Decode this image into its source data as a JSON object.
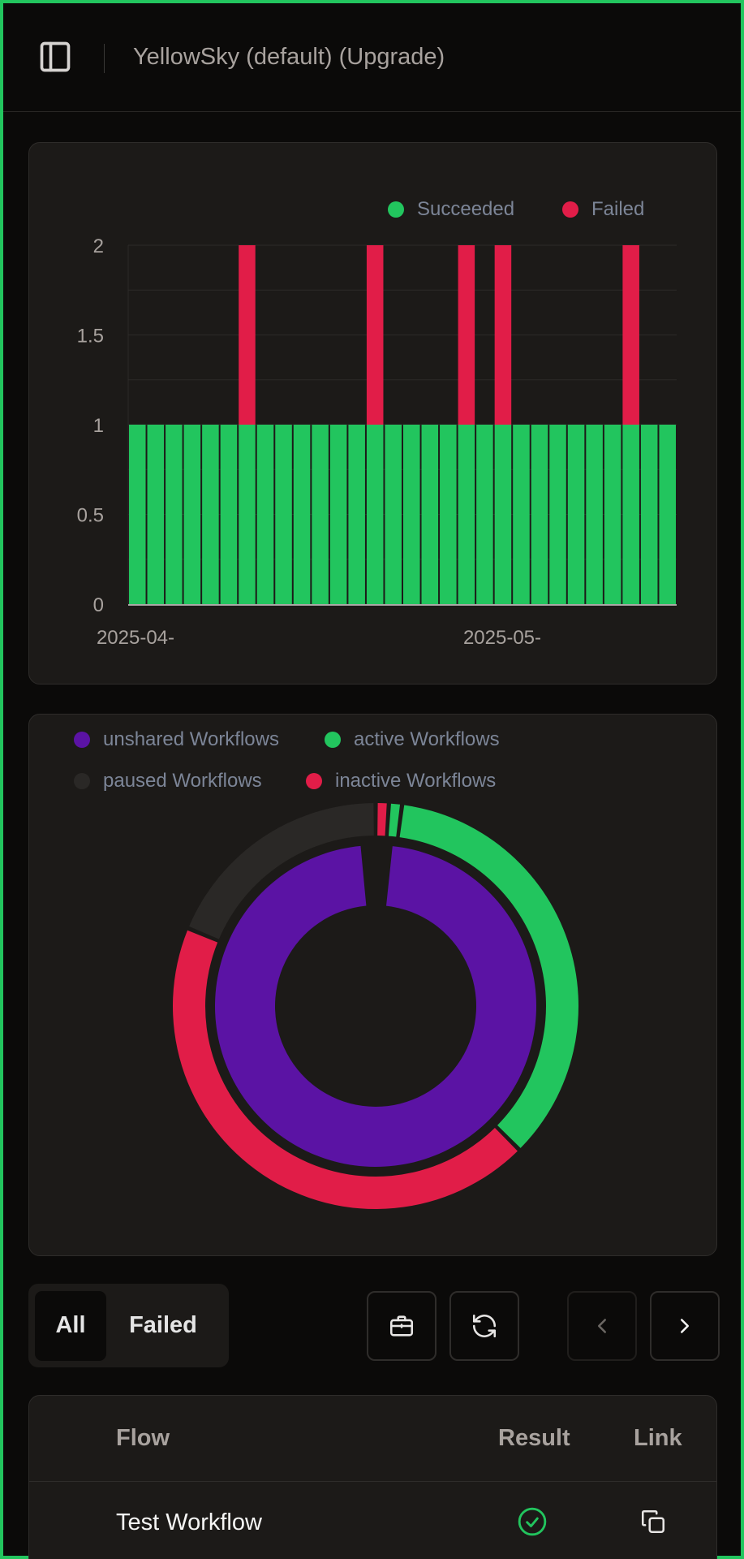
{
  "header": {
    "workspace_title": "YellowSky (default) (Upgrade)",
    "sidebar_toggle_icon": "sidebar-panel-icon"
  },
  "colors": {
    "succeeded": "#22c55e",
    "failed": "#e11d48",
    "unshared": "#5b13a4",
    "paused": "#2a2826",
    "accent_border": "#22c55e"
  },
  "runs_chart": {
    "chart_data": {
      "type": "bar",
      "stacked": true,
      "legend": [
        "Succeeded",
        "Failed"
      ],
      "legend_position": "top-right",
      "ylim": [
        0,
        2
      ],
      "yticks": [
        "0",
        "0.5",
        "1",
        "1.5",
        "2"
      ],
      "xtick_labels": [
        "2025-04-",
        "2025-05-"
      ],
      "grid": true,
      "series": [
        {
          "name": "Succeeded",
          "values": [
            1,
            1,
            1,
            1,
            1,
            1,
            1,
            1,
            1,
            1,
            1,
            1,
            1,
            1,
            1,
            1,
            1,
            1,
            1,
            1,
            1,
            1,
            1,
            1,
            1,
            1,
            1,
            1,
            1,
            1
          ]
        },
        {
          "name": "Failed",
          "values": [
            0,
            0,
            0,
            0,
            0,
            0,
            1,
            0,
            0,
            0,
            0,
            0,
            0,
            1,
            0,
            0,
            0,
            0,
            1,
            0,
            1,
            0,
            0,
            0,
            0,
            0,
            0,
            1,
            0,
            0
          ]
        }
      ]
    }
  },
  "workflows_chart": {
    "chart_data": {
      "type": "pie",
      "legend": [
        "unshared Workflows",
        "active Workflows",
        "paused Workflows",
        "inactive Workflows"
      ],
      "inner_ring": [
        {
          "name": "unshared Workflows",
          "value": 97
        },
        {
          "name": "gap",
          "value": 3
        }
      ],
      "outer_ring": [
        {
          "name": "inactive Workflows",
          "value": 1
        },
        {
          "name": "active Workflows",
          "value": 1
        },
        {
          "name": "active Workflows",
          "value": 34
        },
        {
          "name": "inactive Workflows",
          "value": 42
        },
        {
          "name": "paused Workflows",
          "value": 18
        }
      ]
    }
  },
  "filters": {
    "tab_all": "All",
    "tab_failed": "Failed",
    "briefcase_icon": "briefcase-icon",
    "refresh_icon": "refresh-icon",
    "prev_icon": "chevron-left-icon",
    "next_icon": "chevron-right-icon"
  },
  "table": {
    "columns": [
      "Flow",
      "Result",
      "Link"
    ],
    "rows": [
      {
        "flow": "Test Workflow",
        "result_icon": "check-circle-icon",
        "link_icon": "copy-icon"
      }
    ]
  }
}
